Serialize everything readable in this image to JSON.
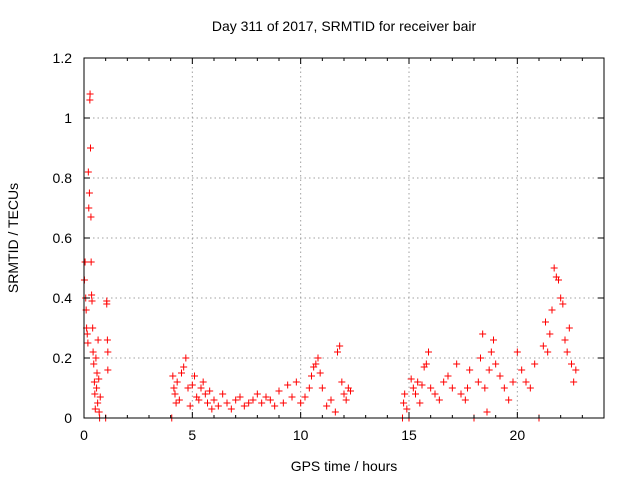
{
  "chart_data": {
    "type": "scatter",
    "title": "Day 311 of 2017, SRMTID for receiver bair",
    "xlabel": "GPS time / hours",
    "ylabel": "SRMTID / TECUs",
    "xlim": [
      0,
      24
    ],
    "ylim": [
      0,
      1.2
    ],
    "xticks": [
      0,
      5,
      10,
      15,
      20
    ],
    "yticks": [
      0,
      0.2,
      0.4,
      0.6,
      0.8,
      1,
      1.2
    ],
    "xtick_labels": [
      "0",
      "5",
      "10",
      "15",
      "20"
    ],
    "ytick_labels": [
      "0",
      "0.2",
      "0.4",
      "0.6",
      "0.8",
      "1",
      "1.2"
    ],
    "grid": true,
    "marker": "+",
    "color": "#ff0000",
    "series": [
      {
        "name": "bair",
        "x": [
          0.02,
          0.05,
          0.08,
          0.1,
          0.12,
          0.15,
          0.18,
          0.2,
          0.22,
          0.25,
          0.27,
          0.28,
          0.3,
          0.32,
          0.33,
          0.35,
          0.37,
          0.4,
          0.42,
          0.45,
          0.48,
          0.5,
          0.52,
          0.55,
          0.58,
          0.6,
          0.63,
          0.65,
          0.68,
          0.7,
          0.72,
          0.75,
          1.0,
          1.05,
          1.05,
          1.08,
          1.1,
          1.1,
          4.05,
          4.1,
          4.15,
          4.2,
          4.25,
          4.3,
          4.4,
          4.5,
          4.6,
          4.7,
          4.8,
          4.9,
          5.0,
          5.1,
          5.2,
          5.3,
          5.4,
          5.5,
          5.6,
          5.7,
          5.8,
          5.9,
          6.0,
          6.2,
          6.4,
          6.6,
          6.8,
          7.0,
          7.2,
          7.4,
          7.6,
          7.8,
          8.0,
          8.2,
          8.4,
          8.6,
          8.8,
          9.0,
          9.2,
          9.4,
          9.6,
          9.8,
          10.0,
          10.2,
          10.4,
          10.5,
          10.6,
          10.7,
          10.8,
          10.9,
          11.0,
          11.2,
          11.4,
          11.6,
          11.7,
          11.8,
          11.9,
          12.0,
          12.1,
          12.2,
          12.3,
          14.7,
          14.75,
          14.8,
          14.9,
          15.0,
          15.1,
          15.2,
          15.3,
          15.4,
          15.5,
          15.6,
          15.7,
          15.8,
          15.9,
          16.0,
          16.2,
          16.4,
          16.6,
          16.8,
          17.0,
          17.2,
          17.4,
          17.6,
          17.7,
          17.8,
          18.0,
          18.2,
          18.3,
          18.4,
          18.5,
          18.6,
          18.7,
          18.8,
          18.9,
          19.0,
          19.2,
          19.4,
          19.6,
          19.8,
          20.0,
          20.2,
          20.4,
          20.6,
          20.8,
          21.0,
          21.2,
          21.3,
          21.4,
          21.5,
          21.6,
          21.7,
          21.8,
          21.9,
          22.0,
          22.1,
          22.2,
          22.3,
          22.4,
          22.5,
          22.6,
          22.7
        ],
        "y": [
          0.46,
          0.52,
          0.4,
          0.36,
          0.3,
          0.28,
          0.25,
          0.82,
          0.7,
          0.75,
          1.06,
          1.08,
          0.9,
          0.67,
          0.52,
          0.41,
          0.39,
          0.3,
          0.22,
          0.18,
          0.12,
          0.08,
          0.03,
          0.2,
          0.1,
          0.15,
          0.05,
          0.26,
          0.13,
          0.02,
          0.0,
          0.07,
          0.0,
          0.39,
          0.38,
          0.26,
          0.22,
          0.16,
          0.0,
          0.14,
          0.1,
          0.08,
          0.05,
          0.12,
          0.06,
          0.15,
          0.17,
          0.2,
          0.1,
          0.04,
          0.11,
          0.14,
          0.07,
          0.06,
          0.1,
          0.12,
          0.08,
          0.05,
          0.09,
          0.03,
          0.06,
          0.04,
          0.08,
          0.05,
          0.03,
          0.06,
          0.07,
          0.04,
          0.05,
          0.06,
          0.08,
          0.05,
          0.07,
          0.06,
          0.04,
          0.09,
          0.05,
          0.11,
          0.07,
          0.12,
          0.05,
          0.07,
          0.1,
          0.14,
          0.17,
          0.18,
          0.2,
          0.15,
          0.1,
          0.04,
          0.06,
          0.02,
          0.22,
          0.24,
          0.12,
          0.08,
          0.06,
          0.1,
          0.09,
          0.0,
          0.05,
          0.08,
          0.03,
          0.0,
          0.13,
          0.1,
          0.08,
          0.12,
          0.05,
          0.11,
          0.17,
          0.18,
          0.22,
          0.1,
          0.08,
          0.06,
          0.12,
          0.14,
          0.1,
          0.18,
          0.08,
          0.06,
          0.1,
          0.16,
          0.0,
          0.12,
          0.2,
          0.28,
          0.1,
          0.02,
          0.16,
          0.22,
          0.26,
          0.18,
          0.14,
          0.1,
          0.06,
          0.12,
          0.22,
          0.16,
          0.12,
          0.1,
          0.18,
          0.0,
          0.24,
          0.32,
          0.22,
          0.28,
          0.36,
          0.5,
          0.47,
          0.46,
          0.4,
          0.38,
          0.26,
          0.22,
          0.3,
          0.18,
          0.12,
          0.16
        ]
      }
    ]
  }
}
